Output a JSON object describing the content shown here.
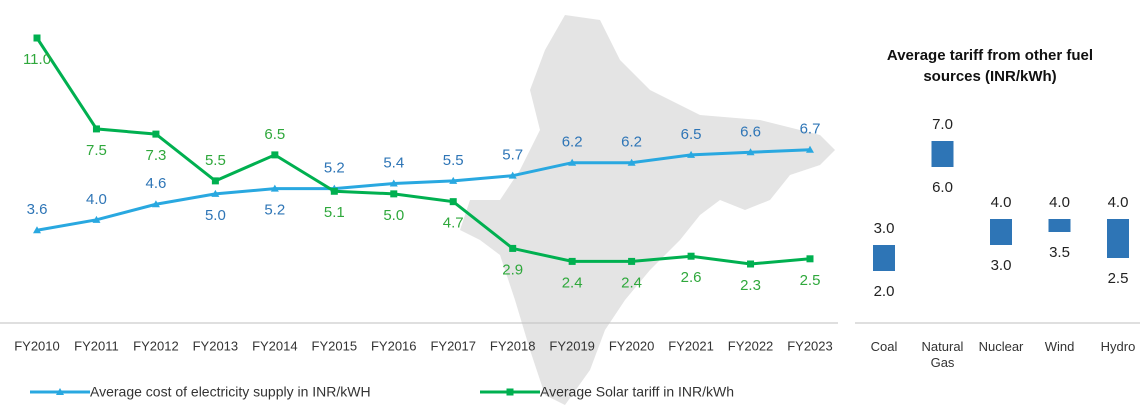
{
  "chart_data": [
    {
      "type": "line",
      "categories": [
        "FY2010",
        "FY2011",
        "FY2012",
        "FY2013",
        "FY2014",
        "FY2015",
        "FY2016",
        "FY2017",
        "FY2018",
        "FY2019",
        "FY2020",
        "FY2021",
        "FY2022",
        "FY2023"
      ],
      "series": [
        {
          "name": "Average cost of electricity supply in INR/kWH",
          "color": "#29a8e0",
          "label_color": "#2e75b6",
          "marker": "triangle",
          "values": [
            3.6,
            4.0,
            4.6,
            5.0,
            5.2,
            5.2,
            5.4,
            5.5,
            5.7,
            6.2,
            6.2,
            6.5,
            6.6,
            6.7
          ],
          "value_labels": [
            "3.6",
            "4.0",
            "4.6",
            "5.0",
            "5.2",
            "5.2",
            "5.4",
            "5.5",
            "5.7",
            "6.2",
            "6.2",
            "6.5",
            "6.6",
            "6.7"
          ]
        },
        {
          "name": "Average Solar tariff in INR/kWh",
          "color": "#00b050",
          "label_color": "#2fa83c",
          "marker": "square",
          "values": [
            11.0,
            7.5,
            7.3,
            5.5,
            6.5,
            5.1,
            5.0,
            4.7,
            2.9,
            2.4,
            2.4,
            2.6,
            2.3,
            2.5
          ],
          "value_labels": [
            "11.0",
            "7.5",
            "7.3",
            "5.5",
            "6.5",
            "5.1",
            "5.0",
            "4.7",
            "2.9",
            "2.4",
            "2.4",
            "2.6",
            "2.3",
            "2.5"
          ]
        }
      ]
    },
    {
      "type": "range",
      "title": "Average tariff from other fuel sources (INR/kWh)",
      "categories": [
        "Coal",
        "Natural Gas",
        "Nuclear",
        "Wind",
        "Hydro"
      ],
      "color": "#2e75b6",
      "series": [
        {
          "values": [
            2.0,
            6.0,
            3.0,
            3.5,
            2.5
          ],
          "value_labels": [
            "2.0",
            "6.0",
            "3.0",
            "3.5",
            "2.5"
          ]
        },
        {
          "values": [
            3.0,
            7.0,
            4.0,
            4.0,
            4.0
          ],
          "value_labels": [
            "3.0",
            "7.0",
            "4.0",
            "4.0",
            "4.0"
          ]
        }
      ]
    }
  ]
}
